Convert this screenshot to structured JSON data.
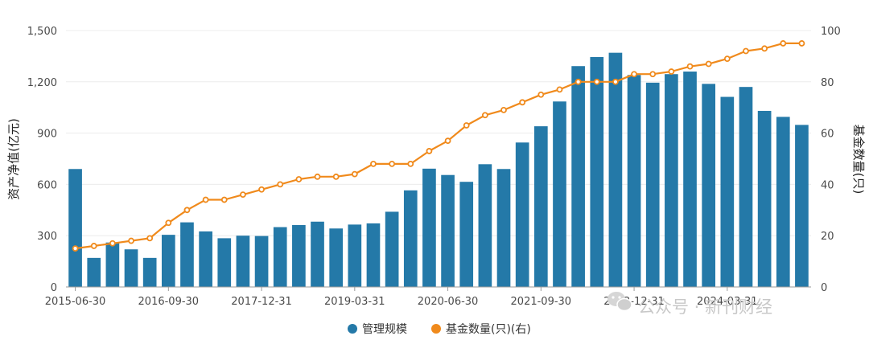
{
  "chart_data": {
    "type": "bar",
    "categories": [
      "2015-06-30",
      "2015-09-30",
      "2015-12-31",
      "2016-03-31",
      "2016-06-30",
      "2016-09-30",
      "2016-12-31",
      "2017-03-31",
      "2017-06-30",
      "2017-09-30",
      "2017-12-31",
      "2018-03-31",
      "2018-06-30",
      "2018-09-30",
      "2018-12-31",
      "2019-03-31",
      "2019-06-30",
      "2019-09-30",
      "2019-12-31",
      "2020-03-31",
      "2020-06-30",
      "2020-09-30",
      "2020-12-31",
      "2021-03-31",
      "2021-06-30",
      "2021-09-30",
      "2021-12-31",
      "2022-03-31",
      "2022-06-30",
      "2022-09-30",
      "2022-12-31",
      "2023-03-31",
      "2023-06-30",
      "2023-09-30",
      "2023-12-31",
      "2024-03-31",
      "2024-06-30",
      "2024-09-30",
      "2024-12-31",
      "2025-03-31"
    ],
    "x_tick_labels": [
      "2015-06-30",
      "2016-09-30",
      "2017-12-31",
      "2019-03-31",
      "2020-06-30",
      "2021-09-30",
      "2022-12-31",
      "2024-03-31"
    ],
    "series": [
      {
        "name": "管理规模",
        "type": "bar",
        "axis": "left",
        "color": "#2479a8",
        "values": [
          690,
          170,
          260,
          220,
          170,
          305,
          378,
          325,
          285,
          300,
          298,
          350,
          362,
          382,
          342,
          365,
          372,
          440,
          565,
          692,
          655,
          615,
          718,
          690,
          845,
          940,
          1085,
          1292,
          1345,
          1370,
          1240,
          1195,
          1245,
          1260,
          1188,
          1112,
          1170,
          1030,
          995,
          948
        ]
      },
      {
        "name": "基金数量(只)(右)",
        "type": "line",
        "axis": "right",
        "color": "#f08a1c",
        "values": [
          15,
          16,
          17,
          18,
          19,
          25,
          30,
          34,
          34,
          36,
          38,
          40,
          42,
          43,
          43,
          44,
          48,
          48,
          48,
          53,
          57,
          63,
          67,
          69,
          72,
          75,
          77,
          80,
          80,
          80,
          83,
          83,
          84,
          86,
          87,
          89,
          92,
          93,
          95,
          95
        ]
      }
    ],
    "ylabel": "资产净值(亿元)",
    "y2label": "基金数量(只)",
    "ylim": [
      0,
      1500
    ],
    "y2lim": [
      0,
      100
    ],
    "y_ticks": [
      "0",
      "300",
      "600",
      "900",
      "1,200",
      "1,500"
    ],
    "y2_ticks": [
      "0",
      "20",
      "40",
      "60",
      "80",
      "100"
    ],
    "grid": true,
    "legend_placement": "bottom-center"
  },
  "watermark": {
    "text": "公众号 · 新刊财经",
    "icon": "wechat-icon"
  }
}
